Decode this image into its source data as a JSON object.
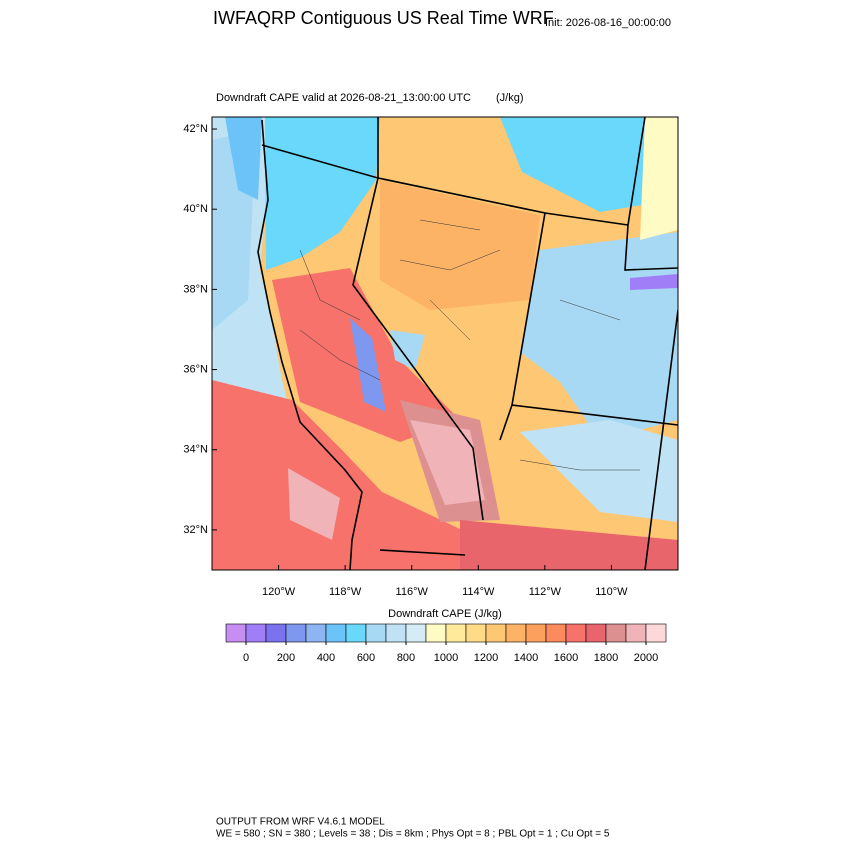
{
  "header": {
    "title": "IWFAQRP Contiguous US Real Time WRF",
    "init": "Init: 2026-08-16_00:00:00"
  },
  "map": {
    "label": "Downdraft CAPE valid at 2026-08-21_13:00:00 UTC",
    "units": "(J/kg)",
    "xlim": [
      -122,
      -108
    ],
    "ylim": [
      31,
      42.3
    ],
    "yticks": [
      {
        "value": 42,
        "label": "42°N"
      },
      {
        "value": 40,
        "label": "40°N"
      },
      {
        "value": 38,
        "label": "38°N"
      },
      {
        "value": 36,
        "label": "36°N"
      },
      {
        "value": 34,
        "label": "34°N"
      },
      {
        "value": 32,
        "label": "32°N"
      }
    ],
    "xticks": [
      {
        "value": -120,
        "label": "120°W"
      },
      {
        "value": -118,
        "label": "118°W"
      },
      {
        "value": -116,
        "label": "116°W"
      },
      {
        "value": -114,
        "label": "114°W"
      },
      {
        "value": -112,
        "label": "112°W"
      },
      {
        "value": -110,
        "label": "110°W"
      }
    ]
  },
  "colorbar": {
    "title": "Downdraft CAPE  (J/kg)",
    "lim": [
      -100,
      2100
    ],
    "colors": [
      "#c58ef0",
      "#a07ef8",
      "#7b72f0",
      "#7f98ef",
      "#8fb4f2",
      "#6cc3f7",
      "#6ad8fb",
      "#a8d9f4",
      "#bfe3f5",
      "#d5ecf6",
      "#fefbc4",
      "#ffe99a",
      "#fedb86",
      "#fec774",
      "#fdb366",
      "#fca05e",
      "#fb8a5e",
      "#f6726a",
      "#e8656b",
      "#dd9090",
      "#f0b4b8",
      "#fdd8d8"
    ],
    "ticks": [
      0,
      200,
      400,
      600,
      800,
      1000,
      1200,
      1400,
      1600,
      1800,
      2000
    ]
  },
  "footer": {
    "lines": [
      "OUTPUT FROM WRF V4.6.1 MODEL",
      "WE = 580 ; SN = 380 ; Levels = 38 ; Dis = 8km ; Phys Opt = 8 ; PBL Opt = 1 ; Cu Opt = 5"
    ]
  }
}
